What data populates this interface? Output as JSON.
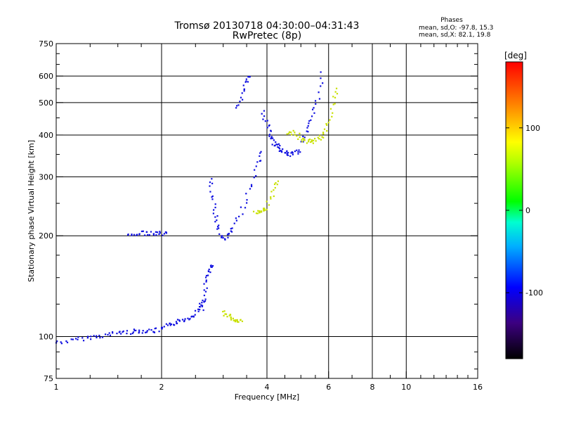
{
  "chart_data": {
    "type": "scatter",
    "title": "Tromsø 20130718 04:30:00–04:31:43",
    "subtitle": "RwPretec (8p)",
    "xlabel": "Frequency [MHz]",
    "ylabel": "Stationary phase Virtual Height [km]",
    "x_scale": "log",
    "y_scale": "log",
    "xlim": [
      1,
      16
    ],
    "ylim": [
      75,
      750
    ],
    "x_ticks": [
      1,
      2,
      4,
      6,
      8,
      10,
      16
    ],
    "x_tick_labels": [
      "1",
      "2",
      "4",
      "6",
      "8",
      "10",
      "16"
    ],
    "x_gridlines": [
      2,
      4,
      6,
      8,
      10
    ],
    "y_ticks": [
      75,
      100,
      200,
      300,
      400,
      500,
      600,
      750
    ],
    "y_tick_labels": [
      "75",
      "100",
      "200",
      "300",
      "400",
      "500",
      "600",
      "750"
    ],
    "y_gridlines": [
      100,
      200,
      300,
      400,
      500,
      600
    ],
    "phase_stats": {
      "header": "Phases",
      "o_line": "mean, sd,O: -97.8, 15.3",
      "x_line": "mean, sd,X:  82.1, 19.8"
    },
    "colorbar": {
      "label": "[deg]",
      "range": [
        -180,
        180
      ],
      "ticks": [
        100,
        0,
        -100
      ],
      "tick_labels": [
        "100",
        "0",
        "-100"
      ]
    },
    "series": [
      {
        "name": "O-mode trace (blue, phase ≈ -100°)",
        "phase_deg": -100,
        "color": "#1010e0",
        "segments": [
          {
            "x": [
              1.0,
              1.1,
              1.2,
              1.3,
              1.4,
              1.5,
              1.6,
              1.7,
              1.8,
              1.9,
              2.0,
              2.1,
              2.2,
              2.3,
              2.4,
              2.5,
              2.6,
              2.7
            ],
            "y": [
              96,
              97,
              99,
              100,
              101,
              103,
              103,
              104,
              104,
              104,
              105,
              108,
              110,
              112,
              114,
              118,
              125,
              128
            ]
          },
          {
            "x": [
              2.6,
              2.65,
              2.7,
              2.75,
              2.8
            ],
            "y": [
              120,
              135,
              150,
              158,
              165
            ]
          },
          {
            "x": [
              2.75,
              2.8,
              2.85,
              2.9,
              3.0,
              3.1,
              3.2,
              3.4,
              3.6,
              3.8,
              3.9
            ],
            "y": [
              300,
              260,
              230,
              210,
              195,
              200,
              210,
              240,
              280,
              330,
              360
            ]
          },
          {
            "x": [
              3.3,
              3.4,
              3.5,
              3.6
            ],
            "y": [
              480,
              530,
              580,
              600
            ]
          },
          {
            "x": [
              3.9,
              4.0,
              4.1,
              4.2,
              4.3,
              4.4,
              4.5,
              4.6,
              4.8,
              5.0
            ],
            "y": [
              470,
              430,
              400,
              380,
              370,
              360,
              355,
              350,
              355,
              360
            ]
          },
          {
            "x": [
              5.0,
              5.2,
              5.4,
              5.6,
              5.8
            ],
            "y": [
              380,
              410,
              450,
              520,
              630
            ]
          },
          {
            "x": [
              1.6,
              1.7,
              1.8,
              1.9,
              2.0,
              2.1
            ],
            "y": [
              203,
              203,
              204,
              203,
              203,
              203
            ]
          }
        ]
      },
      {
        "name": "X-mode trace (yellow-green, phase ≈ +100°)",
        "phase_deg": 100,
        "color": "#c8e000",
        "segments": [
          {
            "x": [
              3.0,
              3.1,
              3.2,
              3.3,
              3.4
            ],
            "y": [
              118,
              115,
              113,
              112,
              111
            ]
          },
          {
            "x": [
              3.7,
              3.8,
              3.9,
              4.0,
              4.2,
              4.3
            ],
            "y": [
              235,
              235,
              238,
              245,
              275,
              295
            ]
          },
          {
            "x": [
              4.6,
              4.8,
              5.0,
              5.2,
              5.4,
              5.6,
              5.8,
              6.0,
              6.2,
              6.4
            ],
            "y": [
              400,
              410,
              390,
              383,
              383,
              390,
              400,
              440,
              500,
              570
            ]
          }
        ]
      }
    ]
  }
}
